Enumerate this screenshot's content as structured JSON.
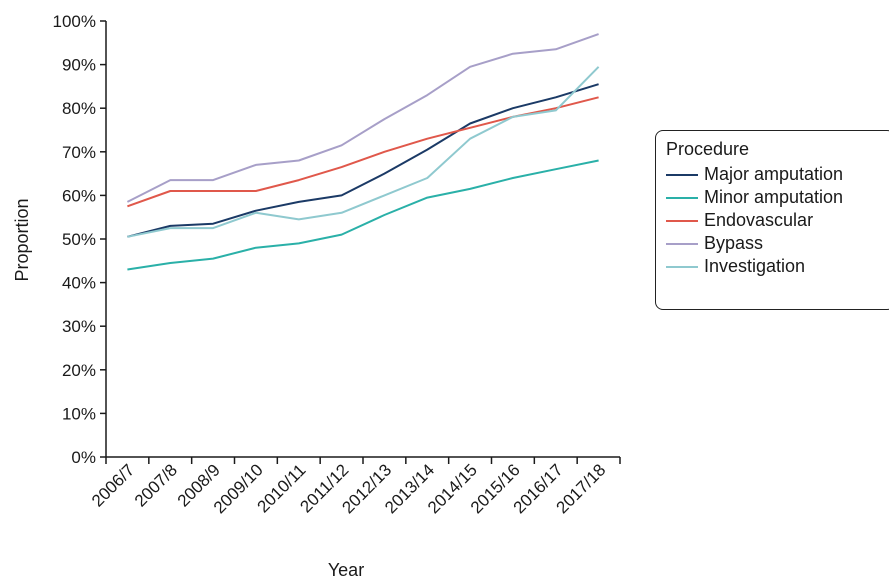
{
  "chart_data": {
    "type": "line",
    "categories": [
      "2006/7",
      "2007/8",
      "2008/9",
      "2009/10",
      "2010/11",
      "2011/12",
      "2012/13",
      "2013/14",
      "2014/15",
      "2015/16",
      "2016/17",
      "2017/18"
    ],
    "xlabel": "Year",
    "ylabel": "Proportion",
    "ylim": [
      0,
      100
    ],
    "yticks": [
      "0%",
      "10%",
      "20%",
      "30%",
      "40%",
      "50%",
      "60%",
      "70%",
      "80%",
      "90%",
      "100%"
    ],
    "grid": false,
    "legend_position": "right",
    "legend_title": "Procedure",
    "series": [
      {
        "name": "Major amputation",
        "color": "#1b3a66",
        "values": [
          50.5,
          53,
          53.5,
          56.5,
          58.5,
          60,
          65,
          70.5,
          76.5,
          80,
          82.5,
          85.5
        ]
      },
      {
        "name": "Minor amputation",
        "color": "#2ab0a8",
        "values": [
          43,
          44.5,
          45.5,
          48,
          49,
          51,
          55.5,
          59.5,
          61.5,
          64,
          66,
          68
        ]
      },
      {
        "name": "Endovascular",
        "color": "#e0584b",
        "values": [
          57.5,
          61,
          61,
          61,
          63.5,
          66.5,
          70,
          73,
          75.5,
          78,
          80,
          82.5
        ]
      },
      {
        "name": "Bypass",
        "color": "#a79fc8",
        "values": [
          58.5,
          63.5,
          63.5,
          67,
          68,
          71.5,
          77.5,
          83,
          89.5,
          92.5,
          93.5,
          97
        ]
      },
      {
        "name": "Investigation",
        "color": "#8fc9cf",
        "values": [
          50.5,
          52.5,
          52.5,
          56,
          54.5,
          56,
          60,
          64,
          73,
          78,
          79.5,
          89.5
        ]
      }
    ]
  }
}
